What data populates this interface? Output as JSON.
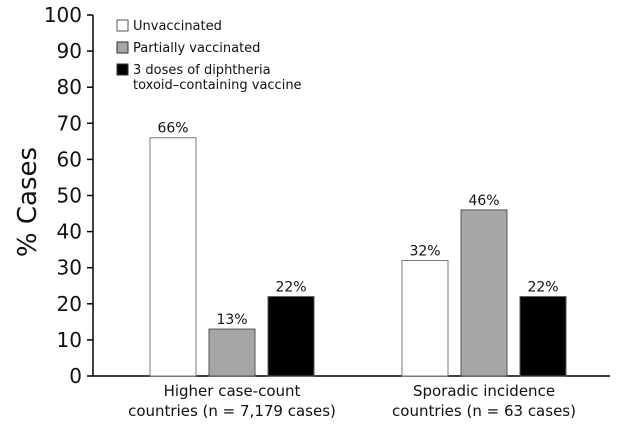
{
  "chart_data": {
    "type": "bar",
    "ylabel": "% Cases",
    "ylim": [
      0,
      100
    ],
    "yticks": [
      0,
      10,
      20,
      30,
      40,
      50,
      60,
      70,
      80,
      90,
      100
    ],
    "grid": false,
    "legend_position": "top-left",
    "categories": [
      [
        "Higher case-count",
        "countries (n = 7,179 cases)"
      ],
      [
        "Sporadic incidence",
        "countries (n = 63 cases)"
      ]
    ],
    "series": [
      {
        "name": "Unvaccinated",
        "legend_lines": [
          "Unvaccinated"
        ],
        "color": "#ffffff",
        "values": [
          66,
          32
        ],
        "labels": [
          "66%",
          "32%"
        ]
      },
      {
        "name": "Partially vaccinated",
        "legend_lines": [
          "Partially vaccinated"
        ],
        "color": "#a6a6a6",
        "values": [
          13,
          46
        ],
        "labels": [
          "13%",
          "46%"
        ]
      },
      {
        "name": "3 doses of diphtheria toxoid–containing vaccine",
        "legend_lines": [
          "3 doses of diphtheria",
          "toxoid–containing vaccine"
        ],
        "color": "#000000",
        "values": [
          22,
          22
        ],
        "labels": [
          "22%",
          "22%"
        ]
      }
    ]
  }
}
